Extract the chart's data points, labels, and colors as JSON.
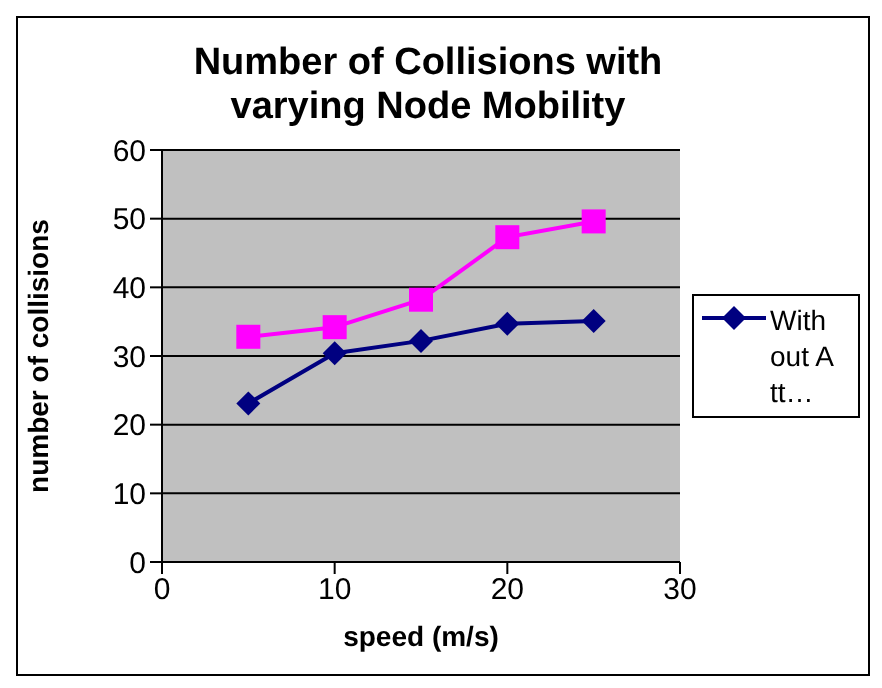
{
  "chart_data": {
    "type": "line",
    "title": "Number of Collisions with varying Node Mobility",
    "xlabel": "speed (m/s)",
    "ylabel": "number of collisions",
    "x": [
      5,
      10,
      15,
      20,
      25
    ],
    "series": [
      {
        "name": "Without Att…",
        "color": "#000080",
        "marker": "diamond",
        "values": [
          23.1,
          30.4,
          32.2,
          34.7,
          35.1
        ]
      },
      {
        "color": "#ff00ff",
        "marker": "square",
        "values": [
          32.8,
          34.2,
          38.2,
          47.3,
          49.6
        ]
      }
    ],
    "xlim": [
      0,
      30
    ],
    "xticks": [
      0,
      10,
      20,
      30
    ],
    "ylim": [
      0,
      60
    ],
    "yticks": [
      0,
      10,
      20,
      30,
      40,
      50,
      60
    ],
    "grid": "y",
    "legend": "right"
  }
}
